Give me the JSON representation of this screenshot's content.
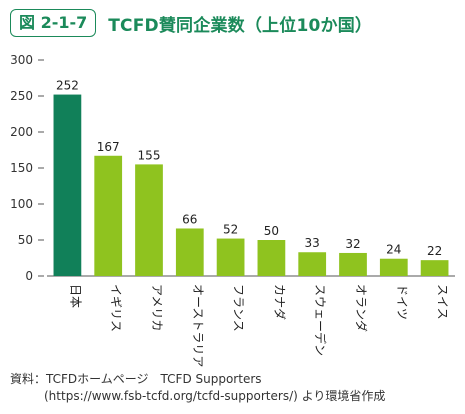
{
  "header": {
    "figure_label": "図 2-1-7",
    "title": "TCFD賛同企業数（上位10か国）"
  },
  "source": {
    "line1": "資料：TCFDホームページ　TCFD Supporters",
    "line2": "(https://www.fsb-tcfd.org/tcfd-supporters/) より環境省作成"
  },
  "chart_data": {
    "type": "bar",
    "categories": [
      "日本",
      "イギリス",
      "アメリカ",
      "オーストラリア",
      "フランス",
      "カナダ",
      "スウェーデン",
      "オランダ",
      "ドイツ",
      "スイス"
    ],
    "values": [
      252,
      167,
      155,
      66,
      52,
      50,
      33,
      32,
      24,
      22
    ],
    "value_labels": [
      "252",
      "167",
      "155",
      "66",
      "52",
      "50",
      "33",
      "32",
      "24",
      "22"
    ],
    "yticks": [
      "0",
      "50",
      "100",
      "150",
      "200",
      "250",
      "300"
    ],
    "ylim": [
      0,
      300
    ],
    "grid": false,
    "colors": {
      "highlight": "#118059",
      "bar": "#8fc31f",
      "axis": "#555555",
      "title": "#1b8a5a"
    }
  }
}
